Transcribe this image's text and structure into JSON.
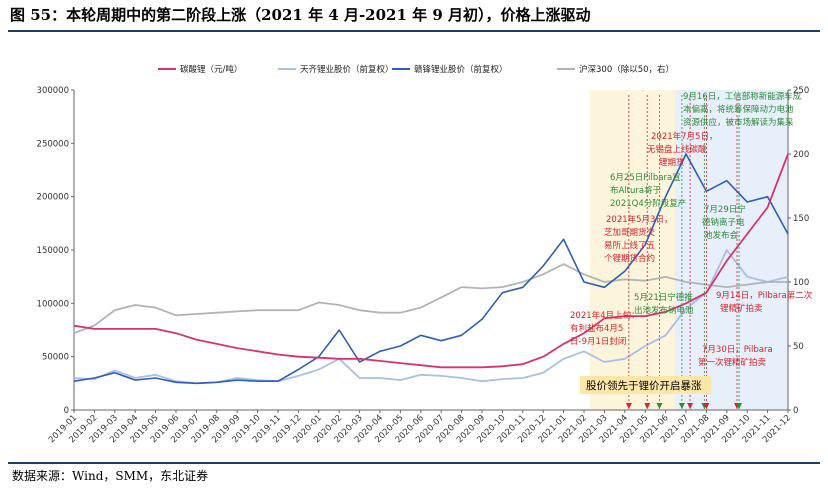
{
  "title": "图 55：本轮周期中的第二阶段上涨（2021 年 4 月-2021 年 9 月初），价格上涨驱动",
  "source": "数据来源：Wind，SMM，东北证券",
  "chart_data": {
    "type": "line",
    "legend_position": "top",
    "x_ticks": [
      "2019-01",
      "2019-02",
      "2019-03",
      "2019-04",
      "2019-05",
      "2019-06",
      "2019-07",
      "2019-08",
      "2019-09",
      "2019-10",
      "2019-11",
      "2019-12",
      "2020-01",
      "2020-02",
      "2020-03",
      "2020-04",
      "2020-05",
      "2020-06",
      "2020-07",
      "2020-08",
      "2020-09",
      "2020-10",
      "2020-11",
      "2020-12",
      "2021-01",
      "2021-02",
      "2021-03",
      "2021-04",
      "2021-05",
      "2021-06",
      "2021-07",
      "2021-08",
      "2021-09",
      "2021-10",
      "2021-11",
      "2021-12"
    ],
    "left_axis": {
      "ticks": [
        0,
        50000,
        100000,
        150000,
        200000,
        250000,
        300000
      ],
      "ylim": [
        0,
        300000
      ]
    },
    "right_axis": {
      "ticks": [
        0,
        50,
        100,
        150,
        200,
        250
      ],
      "ylim": [
        0,
        250
      ]
    },
    "series": [
      {
        "name": "碳酸锂（元/吨）",
        "axis": "left",
        "color": "#d6336c",
        "x": [
          0,
          1,
          2,
          3,
          4,
          5,
          6,
          7,
          8,
          9,
          10,
          11,
          12,
          13,
          14,
          15,
          16,
          17,
          18,
          19,
          20,
          21,
          22,
          23,
          24,
          25,
          26,
          27,
          28,
          29,
          30,
          31,
          32,
          33,
          34,
          35
        ],
        "values": [
          79000,
          76000,
          76000,
          76000,
          76000,
          72000,
          66000,
          62000,
          58000,
          55000,
          52000,
          50000,
          49000,
          48000,
          48000,
          46000,
          44000,
          42000,
          40000,
          40000,
          40000,
          41000,
          43000,
          50000,
          62000,
          72000,
          86000,
          88000,
          88000,
          92000,
          100000,
          110000,
          140000,
          165000,
          190000,
          240000
        ]
      },
      {
        "name": "天齐锂业股价（前复权）",
        "axis": "left",
        "color": "#a9bfe3",
        "x": [
          0,
          1,
          2,
          3,
          4,
          5,
          6,
          7,
          8,
          9,
          10,
          11,
          12,
          13,
          14,
          15,
          16,
          17,
          18,
          19,
          20,
          21,
          22,
          23,
          24,
          25,
          26,
          27,
          28,
          29,
          30,
          31,
          32,
          33,
          34,
          35
        ],
        "values": [
          30000,
          29000,
          37000,
          30000,
          33000,
          27000,
          25000,
          26000,
          30000,
          28000,
          27000,
          32000,
          38000,
          48000,
          30000,
          30000,
          28000,
          33000,
          32000,
          30000,
          27000,
          29000,
          30000,
          35000,
          48000,
          55000,
          45000,
          48000,
          60000,
          70000,
          95000,
          110000,
          150000,
          125000,
          120000,
          125000
        ]
      },
      {
        "name": "赣锋锂业股价（前复权）",
        "axis": "left",
        "color": "#2e5cb8",
        "x": [
          0,
          1,
          2,
          3,
          4,
          5,
          6,
          7,
          8,
          9,
          10,
          11,
          12,
          13,
          14,
          15,
          16,
          17,
          18,
          19,
          20,
          21,
          22,
          23,
          24,
          25,
          26,
          27,
          28,
          29,
          30,
          31,
          32,
          33,
          34,
          35
        ],
        "values": [
          27000,
          30000,
          35000,
          28000,
          30000,
          26000,
          25000,
          26000,
          28000,
          27000,
          27000,
          38000,
          50000,
          75000,
          45000,
          55000,
          60000,
          70000,
          65000,
          70000,
          85000,
          110000,
          115000,
          135000,
          160000,
          120000,
          115000,
          130000,
          155000,
          200000,
          240000,
          205000,
          215000,
          195000,
          200000,
          165000
        ]
      },
      {
        "name": "沪深300（除以50，右）",
        "axis": "right",
        "color": "#b3b3b3",
        "x": [
          0,
          1,
          2,
          3,
          4,
          5,
          6,
          7,
          8,
          9,
          10,
          11,
          12,
          13,
          14,
          15,
          16,
          17,
          18,
          19,
          20,
          21,
          22,
          23,
          24,
          25,
          26,
          27,
          28,
          29,
          30,
          31,
          32,
          33,
          34,
          35
        ],
        "values": [
          60,
          66,
          78,
          82,
          80,
          74,
          75,
          76,
          77,
          78,
          78,
          78,
          84,
          82,
          78,
          76,
          76,
          80,
          88,
          96,
          95,
          96,
          100,
          106,
          114,
          106,
          100,
          102,
          101,
          104,
          100,
          98,
          96,
          98,
          100,
          100
        ]
      }
    ],
    "annotations": [
      {
        "text": "9月16日，工信部称新能源车成本偏高，将统筹保障动力电池资源供应，被市场解读为集采",
        "color": "#2e8b3a"
      },
      {
        "text": "2021年7月5日，无锡盘上线碳酸锂期货",
        "color": "#d9232d"
      },
      {
        "text": "6月25日Pilbara宣布Altura将于2021Q4分阶段复产",
        "color": "#2e8b3a"
      },
      {
        "text": "7月29日宁德钠离子电池发布会",
        "color": "#2e8b3a"
      },
      {
        "text": "2021年5月3日，芝加哥期货交易所上线了五个锂期货合约",
        "color": "#d9232d"
      },
      {
        "text": "5月21日宁德推出池发布钠电池",
        "color": "#2e8b3a"
      },
      {
        "text": "2021年4月上旬：有利盐布4月5日-9月1日封闭",
        "color": "#d9232d"
      },
      {
        "text": "9月14日，Pilbara第二次锂精矿拍卖",
        "color": "#d9232d"
      },
      {
        "text": "7月30日，Pilbara第一次锂精矿拍卖",
        "color": "#d9232d"
      },
      {
        "text": "股价领先于锂价开启暴涨",
        "color": "#000000"
      }
    ]
  }
}
